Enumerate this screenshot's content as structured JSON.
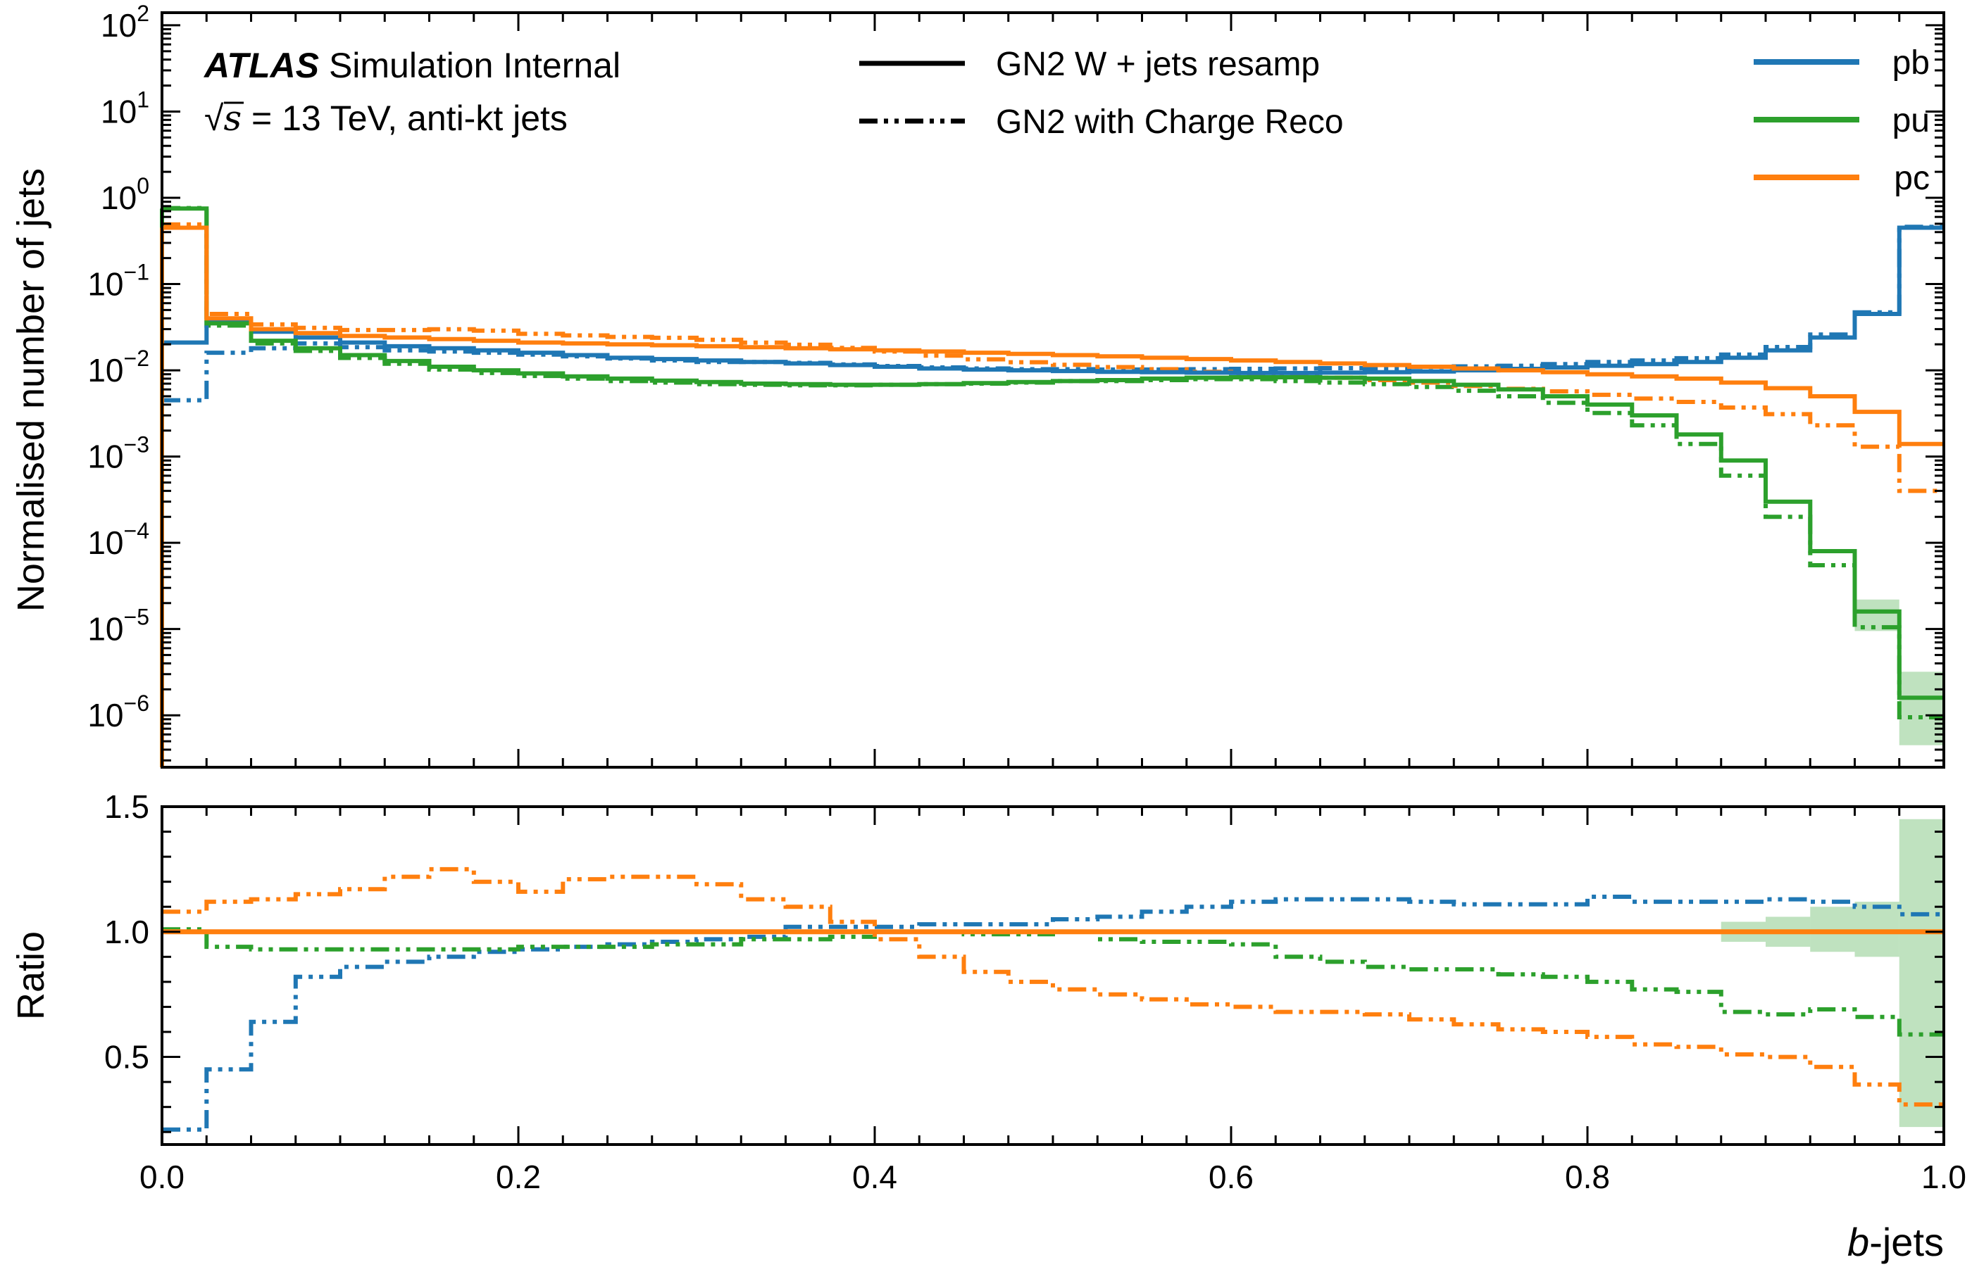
{
  "chart_data": {
    "type": "line",
    "style": "step",
    "annotation": {
      "brand": "ATLAS",
      "line1_rest": "Simulation Internal",
      "line2_prefix": "√",
      "line2_s": "s",
      "line2_rest": " = 13 TeV, anti-kt jets"
    },
    "xlabel_italic": "b",
    "xlabel_rest": "-jets",
    "upper_panel": {
      "ylabel": "Normalised number of jets",
      "yscale": "log",
      "ylim": [
        2.5e-07,
        140
      ],
      "yticks": [
        {
          "base": "10",
          "exp": "2",
          "value": 100
        },
        {
          "base": "10",
          "exp": "1",
          "value": 10
        },
        {
          "base": "10",
          "exp": "0",
          "value": 1
        },
        {
          "base": "10",
          "exp": "−1",
          "value": 0.1
        },
        {
          "base": "10",
          "exp": "−2",
          "value": 0.01
        },
        {
          "base": "10",
          "exp": "−3",
          "value": 0.001
        },
        {
          "base": "10",
          "exp": "−4",
          "value": 0.0001
        },
        {
          "base": "10",
          "exp": "−5",
          "value": 1e-05
        },
        {
          "base": "10",
          "exp": "−6",
          "value": 1e-06
        }
      ]
    },
    "lower_panel": {
      "ylabel": "Ratio",
      "ylim": [
        0.15,
        1.5
      ],
      "yticks": [
        {
          "label": "1.5",
          "value": 1.5
        },
        {
          "label": "1.0",
          "value": 1.0
        },
        {
          "label": "0.5",
          "value": 0.5
        }
      ]
    },
    "xlim": [
      0,
      1
    ],
    "xticks": [
      {
        "label": "0.0",
        "value": 0.0
      },
      {
        "label": "0.2",
        "value": 0.2
      },
      {
        "label": "0.4",
        "value": 0.4
      },
      {
        "label": "0.6",
        "value": 0.6
      },
      {
        "label": "0.8",
        "value": 0.8
      },
      {
        "label": "1.0",
        "value": 1.0
      }
    ],
    "bin_edges": [
      0,
      0.025,
      0.05,
      0.075,
      0.1,
      0.125,
      0.15,
      0.175,
      0.2,
      0.225,
      0.25,
      0.275,
      0.3,
      0.325,
      0.35,
      0.375,
      0.4,
      0.425,
      0.45,
      0.475,
      0.5,
      0.525,
      0.55,
      0.575,
      0.6,
      0.625,
      0.65,
      0.675,
      0.7,
      0.725,
      0.75,
      0.775,
      0.8,
      0.825,
      0.85,
      0.875,
      0.9,
      0.925,
      0.95,
      0.975,
      1.0
    ],
    "legend_styles": [
      {
        "label": "GN2 W + jets resamp",
        "dash": "solid"
      },
      {
        "label": "GN2 with Charge Reco",
        "dash": "dashdot"
      }
    ],
    "legend_classes": [
      {
        "label": "pb",
        "color": "#1f77b4"
      },
      {
        "label": "pu",
        "color": "#2ca02c"
      },
      {
        "label": "pc",
        "color": "#ff7f0e"
      }
    ],
    "series": [
      {
        "name": "pb",
        "model": "GN2 W + jets resamp",
        "color": "#1f77b4",
        "dash": "solid",
        "values": [
          0.021,
          0.036,
          0.028,
          0.024,
          0.021,
          0.019,
          0.018,
          0.017,
          0.016,
          0.015,
          0.014,
          0.0135,
          0.013,
          0.0125,
          0.012,
          0.0115,
          0.011,
          0.0105,
          0.0102,
          0.01,
          0.0098,
          0.0096,
          0.0095,
          0.0094,
          0.0093,
          0.0093,
          0.0094,
          0.0095,
          0.0097,
          0.01,
          0.0104,
          0.0108,
          0.0113,
          0.0118,
          0.0125,
          0.014,
          0.017,
          0.024,
          0.045,
          0.45
        ]
      },
      {
        "name": "pb",
        "model": "GN2 with Charge Reco",
        "color": "#1f77b4",
        "dash": "dashdot",
        "values": [
          0.0045,
          0.016,
          0.018,
          0.0205,
          0.0185,
          0.017,
          0.0165,
          0.016,
          0.0152,
          0.0145,
          0.0137,
          0.013,
          0.0125,
          0.0125,
          0.0122,
          0.0117,
          0.0112,
          0.0108,
          0.0105,
          0.0103,
          0.0103,
          0.0102,
          0.0102,
          0.0103,
          0.0104,
          0.0105,
          0.0106,
          0.0106,
          0.0109,
          0.0111,
          0.0113,
          0.0118,
          0.0125,
          0.013,
          0.0138,
          0.0152,
          0.0186,
          0.026,
          0.047,
          0.46
        ]
      },
      {
        "name": "pu",
        "model": "GN2 W + jets resamp",
        "color": "#2ca02c",
        "dash": "solid",
        "values": [
          0.75,
          0.035,
          0.022,
          0.018,
          0.015,
          0.0128,
          0.011,
          0.01,
          0.0092,
          0.0085,
          0.008,
          0.0076,
          0.0073,
          0.007,
          0.0069,
          0.0068,
          0.0068,
          0.0069,
          0.0071,
          0.0073,
          0.0075,
          0.0077,
          0.008,
          0.0082,
          0.0083,
          0.0083,
          0.0082,
          0.008,
          0.0075,
          0.0068,
          0.006,
          0.005,
          0.004,
          0.003,
          0.0018,
          0.0009,
          0.0003,
          8e-05,
          1.6e-05,
          1.6e-06
        ]
      },
      {
        "name": "pu",
        "model": "GN2 with Charge Reco",
        "color": "#2ca02c",
        "dash": "dashdot",
        "values": [
          0.76,
          0.033,
          0.0205,
          0.0168,
          0.0139,
          0.0119,
          0.0102,
          0.0093,
          0.0086,
          0.008,
          0.0075,
          0.0072,
          0.0069,
          0.0068,
          0.0067,
          0.0067,
          0.0068,
          0.0069,
          0.007,
          0.0072,
          0.0075,
          0.0075,
          0.0077,
          0.0079,
          0.0079,
          0.0075,
          0.0072,
          0.0069,
          0.0064,
          0.0058,
          0.005,
          0.0042,
          0.0032,
          0.0023,
          0.0014,
          0.0006,
          0.0002,
          5.5e-05,
          1.05e-05,
          9.5e-07
        ]
      },
      {
        "name": "pc",
        "model": "GN2 W + jets resamp",
        "color": "#ff7f0e",
        "dash": "solid",
        "values": [
          0.45,
          0.04,
          0.03,
          0.027,
          0.025,
          0.024,
          0.023,
          0.022,
          0.021,
          0.0205,
          0.02,
          0.0195,
          0.019,
          0.0185,
          0.018,
          0.0175,
          0.017,
          0.0165,
          0.016,
          0.0155,
          0.015,
          0.0145,
          0.014,
          0.0135,
          0.013,
          0.0125,
          0.012,
          0.0115,
          0.011,
          0.0105,
          0.01,
          0.0095,
          0.009,
          0.0085,
          0.008,
          0.0072,
          0.0062,
          0.005,
          0.0033,
          0.0014
        ]
      },
      {
        "name": "pc",
        "model": "GN2 with Charge Reco",
        "color": "#ff7f0e",
        "dash": "dashdot",
        "values": [
          0.49,
          0.045,
          0.034,
          0.0311,
          0.0293,
          0.0293,
          0.0299,
          0.0288,
          0.0265,
          0.0254,
          0.0244,
          0.0238,
          0.0226,
          0.0209,
          0.0198,
          0.0182,
          0.0165,
          0.0148,
          0.0134,
          0.0124,
          0.0116,
          0.0109,
          0.0103,
          0.0096,
          0.0091,
          0.0085,
          0.0082,
          0.0077,
          0.0072,
          0.0066,
          0.0061,
          0.0057,
          0.0052,
          0.0047,
          0.0043,
          0.0037,
          0.0031,
          0.0023,
          0.0013,
          0.0004
        ]
      }
    ],
    "ratio_series": [
      {
        "name": "pb ratio",
        "color": "#1f77b4",
        "dash": "dashdot",
        "values": [
          0.21,
          0.45,
          0.64,
          0.82,
          0.86,
          0.88,
          0.9,
          0.92,
          0.93,
          0.94,
          0.95,
          0.96,
          0.97,
          0.98,
          1.02,
          1.02,
          1.02,
          1.03,
          1.03,
          1.03,
          1.05,
          1.06,
          1.08,
          1.1,
          1.12,
          1.13,
          1.13,
          1.13,
          1.12,
          1.11,
          1.11,
          1.11,
          1.14,
          1.12,
          1.12,
          1.12,
          1.13,
          1.12,
          1.1,
          1.07
        ]
      },
      {
        "name": "pu ratio",
        "color": "#2ca02c",
        "dash": "dashdot",
        "values": [
          1.01,
          0.94,
          0.93,
          0.93,
          0.93,
          0.93,
          0.93,
          0.93,
          0.94,
          0.94,
          0.94,
          0.95,
          0.95,
          0.97,
          0.97,
          0.98,
          1.0,
          1.0,
          0.99,
          0.99,
          1.0,
          0.97,
          0.96,
          0.96,
          0.95,
          0.9,
          0.88,
          0.86,
          0.85,
          0.85,
          0.83,
          0.82,
          0.8,
          0.77,
          0.76,
          0.68,
          0.67,
          0.69,
          0.66,
          0.59
        ]
      },
      {
        "name": "pc ratio",
        "color": "#ff7f0e",
        "dash": "dashdot",
        "values": [
          1.08,
          1.12,
          1.13,
          1.15,
          1.17,
          1.22,
          1.25,
          1.2,
          1.16,
          1.21,
          1.22,
          1.22,
          1.19,
          1.13,
          1.1,
          1.04,
          0.97,
          0.9,
          0.84,
          0.8,
          0.77,
          0.75,
          0.73,
          0.71,
          0.7,
          0.68,
          0.68,
          0.67,
          0.65,
          0.63,
          0.61,
          0.6,
          0.58,
          0.55,
          0.54,
          0.51,
          0.5,
          0.46,
          0.39,
          0.31
        ]
      }
    ],
    "ratio_bands": [
      {
        "xmin": 0.875,
        "xmax": 0.9,
        "low": 0.96,
        "high": 1.04
      },
      {
        "xmin": 0.9,
        "xmax": 0.925,
        "low": 0.94,
        "high": 1.06
      },
      {
        "xmin": 0.925,
        "xmax": 0.95,
        "low": 0.92,
        "high": 1.1
      },
      {
        "xmin": 0.95,
        "xmax": 0.975,
        "low": 0.9,
        "high": 1.12
      },
      {
        "xmin": 0.975,
        "xmax": 1.0,
        "low": 0.22,
        "high": 1.45
      }
    ],
    "ratio_reference": 1.0,
    "ratio_reference_color": "#ff7f0e",
    "upper_bands": [
      {
        "xmin": 0.95,
        "xmax": 0.975,
        "low": 9.5e-06,
        "high": 2.2e-05
      },
      {
        "xmin": 0.975,
        "xmax": 1.0,
        "low": 4.5e-07,
        "high": 3.2e-06
      }
    ],
    "band_color": "#2ca02c"
  }
}
